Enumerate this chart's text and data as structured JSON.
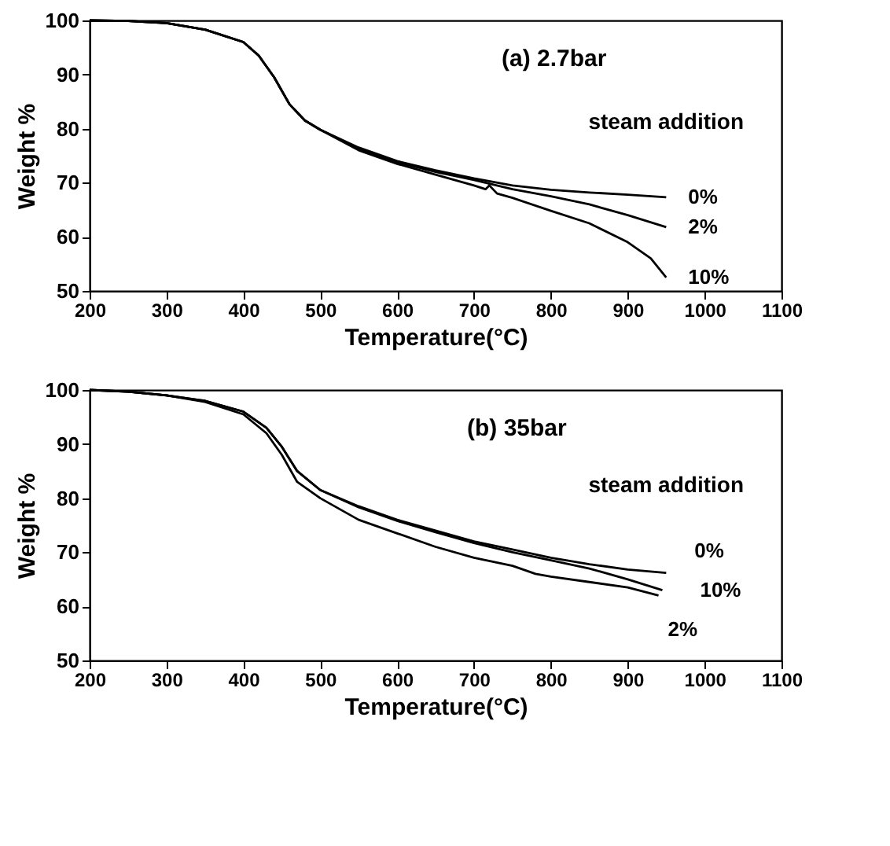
{
  "chart_data": [
    {
      "type": "line",
      "annotations": [
        "(a) 2.7bar"
      ],
      "xlabel": "Temperature(°C)",
      "ylabel": "Weight %",
      "legend_title": "steam addition",
      "xlim": [
        200,
        1100
      ],
      "xticks": [
        200,
        300,
        400,
        500,
        600,
        700,
        800,
        900,
        1000,
        1100
      ],
      "ylim": [
        50,
        100
      ],
      "yticks": [
        50,
        60,
        70,
        80,
        90,
        100
      ],
      "grid": false,
      "legend": false,
      "marker": "none",
      "line_style": "solid",
      "series": [
        {
          "name": "0%",
          "color": "#000000",
          "x": [
            200,
            250,
            300,
            350,
            400,
            420,
            440,
            460,
            480,
            500,
            550,
            600,
            650,
            700,
            750,
            800,
            850,
            900,
            950
          ],
          "values": [
            100,
            99.9,
            99.5,
            98.3,
            96,
            93.5,
            89.5,
            84.5,
            81.5,
            79.8,
            76.5,
            74,
            72.3,
            70.8,
            69.5,
            68.7,
            68.2,
            67.8,
            67.3
          ]
        },
        {
          "name": "2%",
          "color": "#000000",
          "x": [
            200,
            250,
            300,
            350,
            400,
            420,
            440,
            460,
            480,
            500,
            550,
            600,
            650,
            700,
            750,
            800,
            850,
            900,
            950
          ],
          "values": [
            100,
            99.9,
            99.5,
            98.3,
            96,
            93.5,
            89.5,
            84.5,
            81.5,
            79.8,
            76.3,
            73.8,
            72,
            70.5,
            68.8,
            67.5,
            66,
            64,
            61.8
          ]
        },
        {
          "name": "10%",
          "color": "#000000",
          "x": [
            200,
            250,
            300,
            350,
            400,
            420,
            440,
            460,
            480,
            500,
            550,
            600,
            650,
            700,
            715,
            720,
            730,
            750,
            800,
            850,
            900,
            930,
            950
          ],
          "values": [
            100,
            99.9,
            99.5,
            98.3,
            96,
            93.5,
            89.5,
            84.5,
            81.5,
            79.8,
            76,
            73.5,
            71.5,
            69.5,
            68.8,
            69.5,
            68,
            67.2,
            64.8,
            62.5,
            59,
            56,
            52.5
          ]
        }
      ]
    },
    {
      "type": "line",
      "annotations": [
        "(b) 35bar"
      ],
      "xlabel": "Temperature(°C)",
      "ylabel": "Weight %",
      "legend_title": "steam addition",
      "xlim": [
        200,
        1100
      ],
      "xticks": [
        200,
        300,
        400,
        500,
        600,
        700,
        800,
        900,
        1000,
        1100
      ],
      "ylim": [
        50,
        100
      ],
      "yticks": [
        50,
        60,
        70,
        80,
        90,
        100
      ],
      "grid": false,
      "legend": false,
      "marker": "none",
      "line_style": "solid",
      "series": [
        {
          "name": "0%",
          "color": "#000000",
          "x": [
            200,
            250,
            300,
            350,
            400,
            430,
            450,
            470,
            500,
            550,
            600,
            650,
            700,
            750,
            800,
            850,
            900,
            950
          ],
          "values": [
            100,
            99.7,
            99,
            98,
            96,
            93,
            89.5,
            85,
            81.5,
            78.5,
            76,
            74,
            72,
            70.5,
            69,
            67.8,
            66.8,
            66.2
          ]
        },
        {
          "name": "10%",
          "color": "#000000",
          "x": [
            200,
            250,
            300,
            350,
            400,
            430,
            450,
            470,
            500,
            550,
            600,
            650,
            700,
            750,
            800,
            850,
            900,
            945
          ],
          "values": [
            100,
            99.7,
            99,
            98,
            96,
            93,
            89.5,
            85,
            81.5,
            78.3,
            75.8,
            73.7,
            71.7,
            70,
            68.5,
            67,
            65,
            63
          ]
        },
        {
          "name": "2%",
          "color": "#000000",
          "x": [
            200,
            250,
            300,
            350,
            400,
            430,
            450,
            470,
            500,
            550,
            600,
            650,
            700,
            750,
            780,
            800,
            850,
            900,
            940
          ],
          "values": [
            100,
            99.7,
            99,
            97.8,
            95.5,
            92,
            88,
            83,
            80,
            76,
            73.5,
            71,
            69,
            67.5,
            66,
            65.5,
            64.5,
            63.5,
            62
          ]
        }
      ]
    }
  ]
}
